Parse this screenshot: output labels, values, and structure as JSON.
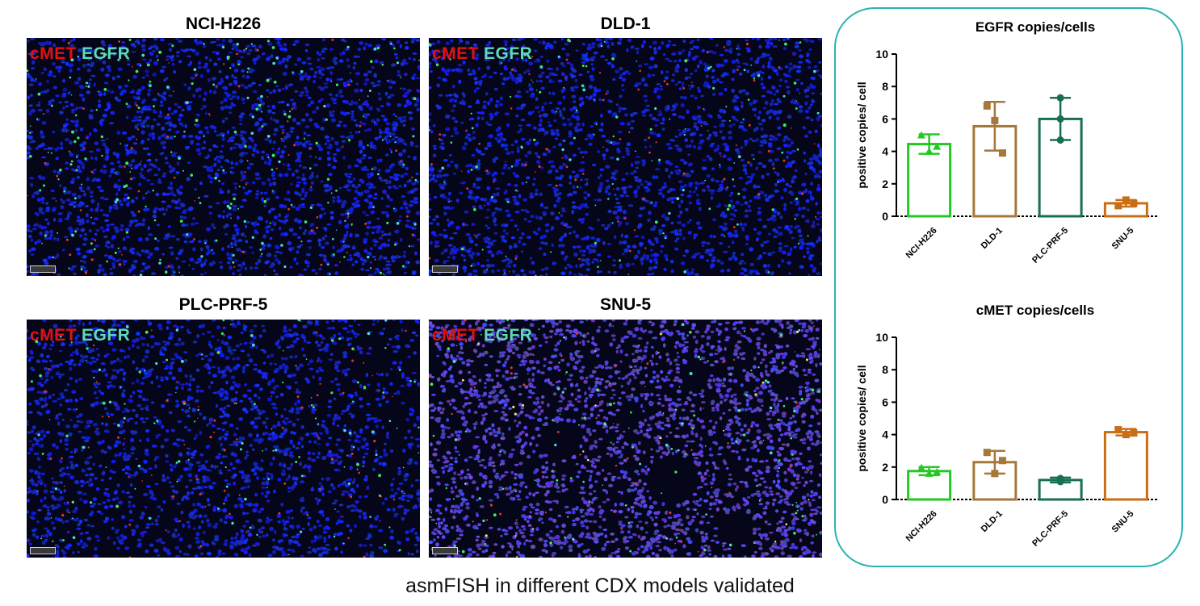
{
  "panels": [
    {
      "title": "NCI-H226",
      "stain_red": "cMET",
      "stain_green": "EGFR",
      "tissue": "dense-green"
    },
    {
      "title": "DLD-1",
      "stain_red": "cMET",
      "stain_green": "EGFR",
      "tissue": "dense-blue"
    },
    {
      "title": "PLC-PRF-5",
      "stain_red": "cMET",
      "stain_green": "EGFR",
      "tissue": "curved-edge"
    },
    {
      "title": "SNU-5",
      "stain_red": "cMET",
      "stain_green": "EGFR",
      "tissue": "bright-holes"
    }
  ],
  "colors": {
    "red": "#e01212",
    "green": "#5fd9b6",
    "nuclei": "#2a3cd8",
    "box_border": "#2ab3b0"
  },
  "caption": "asmFISH in different CDX models validated",
  "chart_data": [
    {
      "type": "bar",
      "title": "EGFR copies/cells",
      "ylabel": "positive copies/ cell",
      "ylim": [
        0,
        10
      ],
      "yticks": [
        0,
        2,
        4,
        6,
        8,
        10
      ],
      "categories": [
        "NCI-H226",
        "DLD-1",
        "PLC-PRF-5",
        "SNU-5"
      ],
      "values": [
        4.45,
        5.55,
        6.0,
        0.8
      ],
      "errors": [
        0.6,
        1.5,
        1.3,
        0.2
      ],
      "points": [
        [
          5.0,
          4.0,
          4.3
        ],
        [
          6.8,
          5.9,
          3.9
        ],
        [
          7.3,
          6.0,
          4.7
        ],
        [
          0.65,
          1.0,
          0.8
        ]
      ],
      "markers": [
        "triangle",
        "square",
        "circle",
        "square"
      ],
      "bar_colors": [
        "#22c922",
        "#a6773a",
        "#17704e",
        "#c96e14"
      ]
    },
    {
      "type": "bar",
      "title": "cMET copies/cells",
      "ylabel": "positive copies/ cell",
      "ylim": [
        0,
        10
      ],
      "yticks": [
        0,
        2,
        4,
        6,
        8,
        10
      ],
      "categories": [
        "NCI-H226",
        "DLD-1",
        "PLC-PRF-5",
        "SNU-5"
      ],
      "values": [
        1.75,
        2.3,
        1.2,
        4.15
      ],
      "errors": [
        0.25,
        0.7,
        0.15,
        0.2
      ],
      "points": [
        [
          1.95,
          1.6,
          1.7
        ],
        [
          2.9,
          1.6,
          2.4
        ],
        [
          1.1,
          1.3,
          1.25
        ],
        [
          4.3,
          4.0,
          4.1
        ]
      ],
      "markers": [
        "triangle",
        "square",
        "circle",
        "square"
      ],
      "bar_colors": [
        "#22c922",
        "#a6773a",
        "#17704e",
        "#c96e14"
      ]
    }
  ]
}
